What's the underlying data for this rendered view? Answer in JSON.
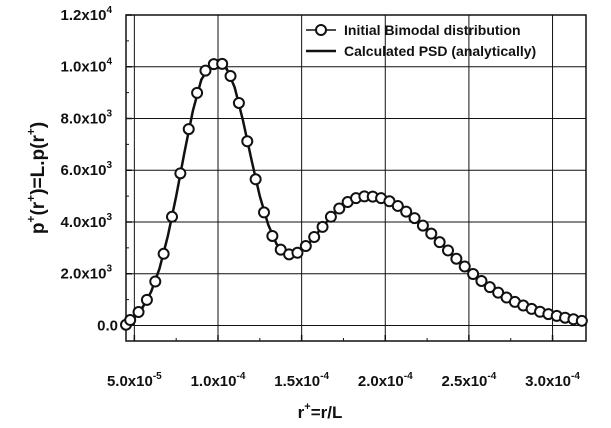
{
  "chart_data": {
    "type": "line",
    "xlabel": {
      "base": "r",
      "sup": "+",
      "rest": "=r/L"
    },
    "ylabel": {
      "p1": "p",
      "s1": "+",
      "p2": "(r",
      "s2": "+",
      "p3": ")=L.p(r",
      "s3": "+",
      "p4": ")"
    },
    "xlim": [
      4.5e-05,
      0.00032
    ],
    "ylim": [
      -600,
      12000
    ],
    "x_ticks": [
      {
        "value": 5e-05,
        "mant": "5.0x10",
        "exp": "-5"
      },
      {
        "value": 0.0001,
        "mant": "1.0x10",
        "exp": "-4"
      },
      {
        "value": 0.00015,
        "mant": "1.5x10",
        "exp": "-4"
      },
      {
        "value": 0.0002,
        "mant": "2.0x10",
        "exp": "-4"
      },
      {
        "value": 0.00025,
        "mant": "2.5x10",
        "exp": "-4"
      },
      {
        "value": 0.0003,
        "mant": "3.0x10",
        "exp": "-4"
      }
    ],
    "y_ticks": [
      {
        "value": 0,
        "mant": "0.0",
        "exp": ""
      },
      {
        "value": 2000,
        "mant": "2.0x10",
        "exp": "3"
      },
      {
        "value": 4000,
        "mant": "4.0x10",
        "exp": "3"
      },
      {
        "value": 6000,
        "mant": "6.0x10",
        "exp": "3"
      },
      {
        "value": 8000,
        "mant": "8.0x10",
        "exp": "3"
      },
      {
        "value": 10000,
        "mant": "1.0x10",
        "exp": "4"
      },
      {
        "value": 12000,
        "mant": "1.2x10",
        "exp": "4"
      }
    ],
    "grid": true,
    "legend_position": "top-right",
    "series": [
      {
        "name": "Initial Bimodal distribution",
        "style": "markers",
        "marker": "open-circle",
        "x": [
          4.5e-05,
          4.75e-05,
          5.25e-05,
          5.75e-05,
          6.25e-05,
          6.75e-05,
          7.25e-05,
          7.75e-05,
          8.25e-05,
          8.75e-05,
          9.25e-05,
          9.75e-05,
          0.0001025,
          0.0001075,
          0.0001125,
          0.0001175,
          0.0001225,
          0.0001275,
          0.0001325,
          0.0001375,
          0.0001425,
          0.0001475,
          0.0001525,
          0.0001575,
          0.0001625,
          0.0001675,
          0.0001725,
          0.0001775,
          0.0001825,
          0.0001875,
          0.0001925,
          0.0001975,
          0.0002025,
          0.0002075,
          0.0002125,
          0.0002175,
          0.0002225,
          0.0002275,
          0.0002325,
          0.0002375,
          0.0002425,
          0.0002475,
          0.0002525,
          0.0002575,
          0.0002625,
          0.0002675,
          0.0002725,
          0.0002775,
          0.0002825,
          0.0002875,
          0.0002925,
          0.0002975,
          0.0003025,
          0.0003075,
          0.0003125,
          0.0003175
        ],
        "y": [
          30,
          210,
          520,
          990,
          1700,
          2770,
          4200,
          5880,
          7590,
          8990,
          9850,
          10100,
          10110,
          9640,
          8600,
          7120,
          5650,
          4370,
          3460,
          2930,
          2750,
          2810,
          3070,
          3420,
          3810,
          4200,
          4520,
          4770,
          4920,
          4990,
          4980,
          4920,
          4800,
          4620,
          4400,
          4150,
          3860,
          3550,
          3220,
          2900,
          2580,
          2280,
          1990,
          1720,
          1480,
          1270,
          1080,
          910,
          770,
          640,
          530,
          440,
          370,
          300,
          240,
          180
        ]
      },
      {
        "name": "Calculated PSD (analytically)",
        "style": "line",
        "x": [
          4.5e-05,
          5e-05,
          5.5e-05,
          6e-05,
          6.5e-05,
          7e-05,
          7.5e-05,
          8e-05,
          8.5e-05,
          9e-05,
          9.5e-05,
          0.0001,
          0.000105,
          0.00011,
          0.000115,
          0.00012,
          0.000125,
          0.00013,
          0.000135,
          0.00014,
          0.000145,
          0.00015,
          0.000155,
          0.00016,
          0.000165,
          0.00017,
          0.000175,
          0.00018,
          0.000185,
          0.00019,
          0.000195,
          0.0002,
          0.000205,
          0.00021,
          0.000215,
          0.00022,
          0.000225,
          0.00023,
          0.000235,
          0.00024,
          0.000245,
          0.00025,
          0.000255,
          0.00026,
          0.000265,
          0.00027,
          0.000275,
          0.00028,
          0.000285,
          0.00029,
          0.000295,
          0.0003,
          0.000305,
          0.00031,
          0.000315,
          0.00032
        ],
        "y": [
          30,
          300,
          700,
          1300,
          2200,
          3450,
          5000,
          6700,
          8300,
          9500,
          10000,
          10130,
          9950,
          9200,
          7900,
          6400,
          5000,
          3900,
          3150,
          2800,
          2720,
          2900,
          3230,
          3620,
          4010,
          4380,
          4660,
          4860,
          4970,
          5000,
          4960,
          4870,
          4720,
          4520,
          4290,
          4010,
          3710,
          3390,
          3060,
          2740,
          2430,
          2130,
          1860,
          1600,
          1380,
          1180,
          1000,
          840,
          700,
          580,
          480,
          400,
          330,
          270,
          210,
          160
        ]
      }
    ]
  }
}
